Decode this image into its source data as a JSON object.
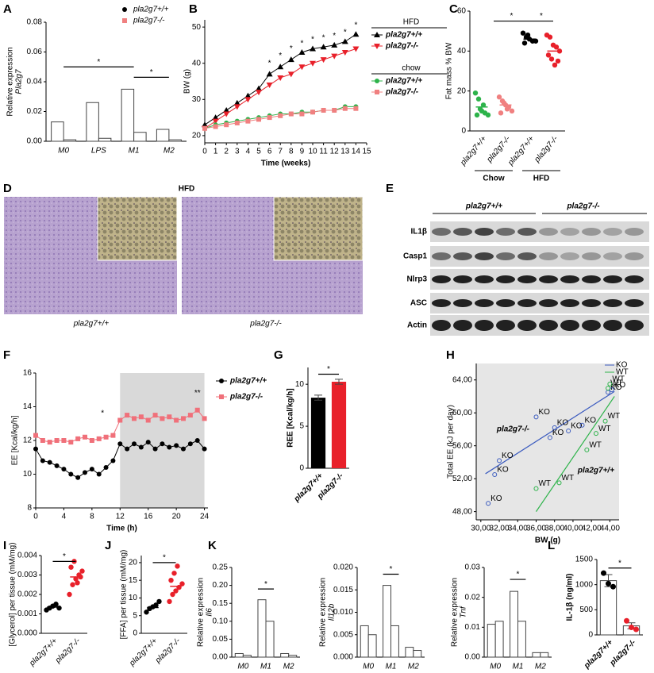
{
  "chart_data": [
    {
      "type": "bar",
      "panel": "A",
      "ylabel": [
        "Relative expression",
        "Pla2g7"
      ],
      "categories": [
        "M0",
        "LPS",
        "M1",
        "M2"
      ],
      "series": [
        {
          "name": "pla2g7+/+",
          "color": "#000000",
          "marker": "circle",
          "values": [
            0.013,
            0.026,
            0.035,
            0.008
          ]
        },
        {
          "name": "pla2g7-/-",
          "color": "#f08080",
          "marker": "square",
          "values": [
            0.001,
            0.002,
            0.006,
            0.001
          ]
        }
      ],
      "bar_fill": "#ffffff",
      "ylim": [
        0,
        0.08
      ],
      "yticks": [
        {
          "value": 0,
          "label": "0.00"
        },
        0.02,
        0.04,
        0.06,
        0.08
      ],
      "brackets": [
        {
          "text": "*",
          "from": "M0",
          "to": "M1",
          "y": 0.05
        },
        {
          "text": "*",
          "from": "M1",
          "to": "M2",
          "y": 0.043
        }
      ]
    },
    {
      "type": "line",
      "panel": "B",
      "ylabel": [
        "BW (g)"
      ],
      "xlabel": "Time (weeks)",
      "x": [
        0,
        1,
        2,
        3,
        4,
        5,
        6,
        7,
        8,
        9,
        10,
        11,
        12,
        13,
        14
      ],
      "series": [
        {
          "name": "pla2g7+/+",
          "group": "HFD",
          "color": "#000000",
          "marker": "triangle",
          "values": [
            23,
            25,
            27,
            29,
            31,
            33,
            37,
            39,
            41,
            43,
            44,
            44.5,
            45,
            46,
            48
          ]
        },
        {
          "name": "pla2g7-/-",
          "group": "HFD",
          "color": "#e8202a",
          "marker": "triangle-down",
          "values": [
            22,
            24,
            26,
            28,
            30,
            32,
            34,
            36,
            37,
            39,
            40,
            41,
            42,
            43,
            44
          ]
        },
        {
          "name": "pla2g7+/+",
          "group": "chow",
          "color": "#2db34a",
          "marker": "circle",
          "values": [
            22,
            23,
            23.5,
            24,
            24.5,
            25,
            25.5,
            26,
            26,
            26.5,
            26.5,
            27,
            27,
            28,
            28
          ]
        },
        {
          "name": "pla2g7-/-",
          "group": "chow",
          "color": "#f08080",
          "marker": "square",
          "values": [
            22,
            22.5,
            23,
            23.5,
            24,
            24.5,
            25,
            25.5,
            26,
            26,
            26.5,
            27,
            27,
            27.5,
            27.5
          ]
        }
      ],
      "xlim": [
        0,
        15
      ],
      "xticks": [
        0,
        1,
        2,
        3,
        4,
        5,
        6,
        7,
        8,
        9,
        10,
        11,
        12,
        13,
        14,
        15
      ],
      "ylim": [
        18,
        52
      ],
      "yticks": [
        20,
        30,
        40,
        50
      ],
      "annotations": [
        {
          "text": "*",
          "x": 6,
          "y": 40
        },
        {
          "text": "*",
          "x": 7,
          "y": 42
        },
        {
          "text": "*",
          "x": 8,
          "y": 44
        },
        {
          "text": "*",
          "x": 9,
          "y": 45.5
        },
        {
          "text": "*",
          "x": 10,
          "y": 46.5
        },
        {
          "text": "*",
          "x": 11,
          "y": 47
        },
        {
          "text": "*",
          "x": 12,
          "y": 47.5
        },
        {
          "text": "*",
          "x": 13,
          "y": 48.5
        },
        {
          "text": "*",
          "x": 14,
          "y": 50.5
        }
      ]
    },
    {
      "type": "dot",
      "panel": "C",
      "ylabel": [
        "Fat mass % BW"
      ],
      "categories": [
        "pla2g7+/+",
        "pla2g7-/-",
        "pla2g7+/+",
        "pla2g7-/-"
      ],
      "groups": [
        "Chow",
        "HFD"
      ],
      "colors": [
        "#2db34a",
        "#f08080",
        "#000000",
        "#e8202a"
      ],
      "points": [
        [
          19,
          16,
          10,
          9,
          8,
          8,
          11,
          13
        ],
        [
          17,
          15,
          13,
          12,
          10,
          9,
          14,
          11
        ],
        [
          49,
          47,
          46,
          45,
          45,
          44,
          48
        ],
        [
          48,
          47,
          43,
          42,
          40,
          38,
          36,
          33,
          35
        ]
      ],
      "means": [
        12,
        13,
        46,
        40
      ],
      "ylim": [
        0,
        60
      ],
      "yticks": [
        0,
        20,
        40,
        60
      ],
      "brackets": [
        {
          "text": "*",
          "from": "Chow",
          "to": "pla2g7+/+",
          "y": 55
        },
        {
          "text": "*",
          "from": "pla2g7+/+",
          "to": "pla2g7-/-",
          "y": 55
        }
      ]
    },
    {
      "type": "line",
      "panel": "F",
      "ylabel": [
        "EE [Kcal/kg/h]"
      ],
      "xlabel": "Time (h)",
      "x": [
        0,
        1,
        2,
        3,
        4,
        5,
        6,
        7,
        8,
        9,
        10,
        11,
        12,
        13,
        14,
        15,
        16,
        17,
        18,
        19,
        20,
        21,
        22,
        23,
        24
      ],
      "series": [
        {
          "name": "pla2g7+/+",
          "color": "#000000",
          "marker": "circle",
          "values": [
            11.5,
            10.8,
            10.7,
            10.5,
            10.3,
            10.0,
            9.8,
            10.1,
            10.3,
            10.0,
            10.4,
            10.8,
            11.8,
            11.5,
            11.8,
            11.6,
            11.9,
            11.5,
            11.8,
            11.6,
            11.7,
            11.5,
            11.8,
            12.0,
            11.5
          ]
        },
        {
          "name": "pla2g7-/-",
          "color": "#f0707a",
          "marker": "square",
          "values": [
            12.3,
            12.0,
            11.9,
            12.0,
            12.0,
            11.9,
            12.1,
            12.2,
            12.0,
            12.1,
            12.2,
            12.3,
            13.2,
            13.5,
            13.3,
            13.4,
            13.2,
            13.5,
            13.3,
            13.4,
            13.2,
            13.3,
            13.5,
            13.8,
            13.3
          ]
        }
      ],
      "xlim": [
        0,
        24.5
      ],
      "xticks": [
        0,
        4,
        8,
        12,
        16,
        20,
        24
      ],
      "ylim": [
        8,
        16
      ],
      "yticks": [
        8,
        10,
        12,
        14,
        16
      ],
      "shade": [
        12,
        24
      ],
      "annotations": [
        {
          "text": "*",
          "x": 9.5,
          "y": 13.6
        },
        {
          "text": "**",
          "x": 23,
          "y": 14.8
        }
      ]
    },
    {
      "type": "bar",
      "panel": "G",
      "ylabel": [
        "REE [Kcal/kg/h]"
      ],
      "categories": [
        "pla2g7+/+",
        "pla2g7-/-"
      ],
      "values": [
        8.4,
        10.3
      ],
      "errors": [
        0.3,
        0.3
      ],
      "colors": [
        "#000000",
        "#e8202a"
      ],
      "ylim": [
        0,
        12
      ],
      "yticks": [
        0,
        5,
        10
      ],
      "brackets": [
        {
          "text": "*",
          "from": "pla2g7+/+",
          "to": "pla2g7-/-",
          "y": 11.2
        }
      ]
    },
    {
      "type": "scatter",
      "panel": "H",
      "ylabel": [
        "Total EE (kJ per day)"
      ],
      "xlabel": "BW (g)",
      "plot_bg": "#e6e6e6",
      "series": [
        {
          "name": "KO",
          "color": "#3b5bbf",
          "x": [
            30.8,
            31.5,
            32.0,
            36.0,
            37.5,
            38.0,
            39.5,
            41.0,
            43.8,
            44.2
          ],
          "y": [
            49.0,
            52.5,
            54.2,
            59.5,
            57.0,
            58.2,
            57.8,
            58.5,
            62.5,
            62.8
          ],
          "fit": [
            [
              30.5,
              52.6
            ],
            [
              44.5,
              62.6
            ]
          ]
        },
        {
          "name": "WT",
          "color": "#2db34a",
          "x": [
            36.0,
            38.5,
            41.5,
            42.5,
            43.5,
            43.8,
            44.0
          ],
          "y": [
            50.8,
            51.5,
            55.5,
            57.5,
            59.0,
            63.0,
            63.5
          ],
          "fit": [
            [
              36.0,
              48.0
            ],
            [
              44.5,
              62.0
            ]
          ]
        }
      ],
      "xlim": [
        29.5,
        45
      ],
      "xticks": [
        {
          "value": 30,
          "label": "30,00"
        },
        {
          "value": 32,
          "label": "32,00"
        },
        {
          "value": 34,
          "label": "34,00"
        },
        {
          "value": 36,
          "label": "36,00"
        },
        {
          "value": 38,
          "label": "38,00"
        },
        {
          "value": 40,
          "label": "40,00"
        },
        {
          "value": 42,
          "label": "42,00"
        },
        {
          "value": 44,
          "label": "44,00"
        }
      ],
      "ylim": [
        47,
        66
      ],
      "yticks": [
        {
          "value": 48,
          "label": "48,00"
        },
        {
          "value": 52,
          "label": "52,00"
        },
        {
          "value": 56,
          "label": "56,00"
        },
        {
          "value": 60,
          "label": "60,00"
        },
        {
          "value": 64,
          "label": "64,00"
        }
      ],
      "annotations": [
        {
          "text": "pla2g7-/-",
          "x": 33.5,
          "y": 58,
          "color": "#3b5bbf"
        },
        {
          "text": "pla2g7+/+",
          "x": 42.5,
          "y": 53,
          "color": "#2db34a"
        }
      ]
    },
    {
      "type": "dot",
      "panel": "I",
      "ylabel": [
        "[Glycerol] per tissue (mM/mg)"
      ],
      "categories": [
        "pla2g7+/+",
        "pla2g7-/-"
      ],
      "colors": [
        "#000000",
        "#e8202a"
      ],
      "points": [
        [
          0.0012,
          0.0013,
          0.0014,
          0.0015,
          0.0013
        ],
        [
          0.002,
          0.0025,
          0.0028,
          0.003,
          0.0032,
          0.0034,
          0.0037,
          0.0026,
          0.0029
        ]
      ],
      "means": [
        0.00135,
        0.0029
      ],
      "ylim": [
        0,
        0.004
      ],
      "yticks": [
        {
          "value": 0,
          "label": "0.000"
        },
        0.001,
        0.002,
        0.003,
        0.004
      ],
      "brackets": [
        {
          "text": "*",
          "from": "pla2g7+/+",
          "to": "pla2g7-/-",
          "y": 0.0037
        }
      ]
    },
    {
      "type": "dot",
      "panel": "J",
      "ylabel": [
        "[FFA] per tissue (mM/mg)"
      ],
      "categories": [
        "pla2g7+/+",
        "pla2g7-/-"
      ],
      "colors": [
        "#000000",
        "#e8202a"
      ],
      "points": [
        [
          6,
          7,
          7.5,
          8,
          9
        ],
        [
          9,
          11,
          12,
          13,
          14,
          15,
          17,
          19
        ]
      ],
      "means": [
        7.3,
        13.3
      ],
      "ylim": [
        0,
        22
      ],
      "yticks": [
        0,
        5,
        10,
        15,
        20
      ],
      "brackets": [
        {
          "text": "*",
          "from": "pla2g7+/+",
          "to": "pla2g7-/-",
          "y": 20
        }
      ]
    },
    {
      "type": "bar",
      "panel": "K",
      "ylabel": [
        "Relative expression",
        "Il6"
      ],
      "categories": [
        "M0",
        "M1",
        "M2"
      ],
      "series": [
        {
          "name": "pla2g7+/+",
          "color": "#000000",
          "values": [
            0.01,
            0.16,
            0.01
          ]
        },
        {
          "name": "pla2g7-/-",
          "color": "#e8202a",
          "values": [
            0.005,
            0.1,
            0.005
          ]
        }
      ],
      "bar_fill": "#ffffff",
      "ylim": [
        0,
        0.25
      ],
      "yticks": [
        {
          "value": 0,
          "label": "0.00"
        },
        0.05,
        {
          "value": 0.1,
          "label": "0.10"
        },
        0.15,
        {
          "value": 0.2,
          "label": "0.20"
        },
        0.25
      ],
      "brackets": [
        {
          "text": "*",
          "from": "M1",
          "to": "M1",
          "y": 0.19
        }
      ]
    },
    {
      "type": "bar",
      "ylabel": [
        "Relative expression",
        "Il12b"
      ],
      "categories": [
        "M0",
        "M1",
        "M2"
      ],
      "series": [
        {
          "name": "pla2g7+/+",
          "color": "#000000",
          "values": [
            0.007,
            0.016,
            0.0022
          ]
        },
        {
          "name": "pla2g7-/-",
          "color": "#e8202a",
          "values": [
            0.005,
            0.007,
            0.0015
          ]
        }
      ],
      "bar_fill": "#ffffff",
      "ylim": [
        0,
        0.02
      ],
      "yticks": [
        {
          "value": 0,
          "label": "0.000"
        },
        0.005,
        {
          "value": 0.01,
          "label": "0.010"
        },
        0.015,
        {
          "value": 0.02,
          "label": "0.020"
        }
      ],
      "brackets": [
        {
          "text": "*",
          "from": "M1",
          "to": "M1",
          "y": 0.0185
        }
      ]
    },
    {
      "type": "bar",
      "ylabel": [
        "Relative expression",
        "Tnf"
      ],
      "categories": [
        "M0",
        "M1",
        "M2"
      ],
      "series": [
        {
          "name": "pla2g7+/+",
          "color": "#000000",
          "values": [
            0.011,
            0.022,
            0.0015
          ]
        },
        {
          "name": "pla2g7-/-",
          "color": "#e8202a",
          "values": [
            0.012,
            0.012,
            0.0015
          ]
        }
      ],
      "bar_fill": "#ffffff",
      "ylim": [
        0,
        0.03
      ],
      "yticks": [
        {
          "value": 0,
          "label": "0.00"
        },
        0.01,
        0.02,
        0.03
      ],
      "brackets": [
        {
          "text": "*",
          "from": "M1",
          "to": "M1",
          "y": 0.026
        }
      ]
    },
    {
      "type": "bar",
      "panel": "L",
      "ylabel": [
        "IL-1β (ng/ml)"
      ],
      "categories": [
        "pla2g7+/+",
        "pla2g7-/-"
      ],
      "values": [
        1080,
        180
      ],
      "errors": [
        120,
        60
      ],
      "colors": [
        "#000000",
        "#e8202a"
      ],
      "bar_fill": "#ffffff",
      "points": [
        [
          1230,
          1020,
          960
        ],
        [
          280,
          150,
          110
        ]
      ],
      "ylim": [
        0,
        1500
      ],
      "yticks": [
        0,
        500,
        1000,
        1500
      ],
      "brackets": [
        {
          "text": "*",
          "from": "pla2g7+/+",
          "to": "pla2g7-/-",
          "y": 1330
        }
      ]
    }
  ],
  "histology": {
    "panel": "D",
    "title": "HFD",
    "labels": [
      "pla2g7+/+",
      "pla2g7-/-"
    ]
  },
  "western_blot": {
    "panel": "E",
    "groups": [
      "pla2g7+/+",
      "pla2g7-/-"
    ],
    "rows": [
      "IL1β",
      "Casp1",
      "Nlrp3",
      "ASC",
      "Actin"
    ]
  }
}
